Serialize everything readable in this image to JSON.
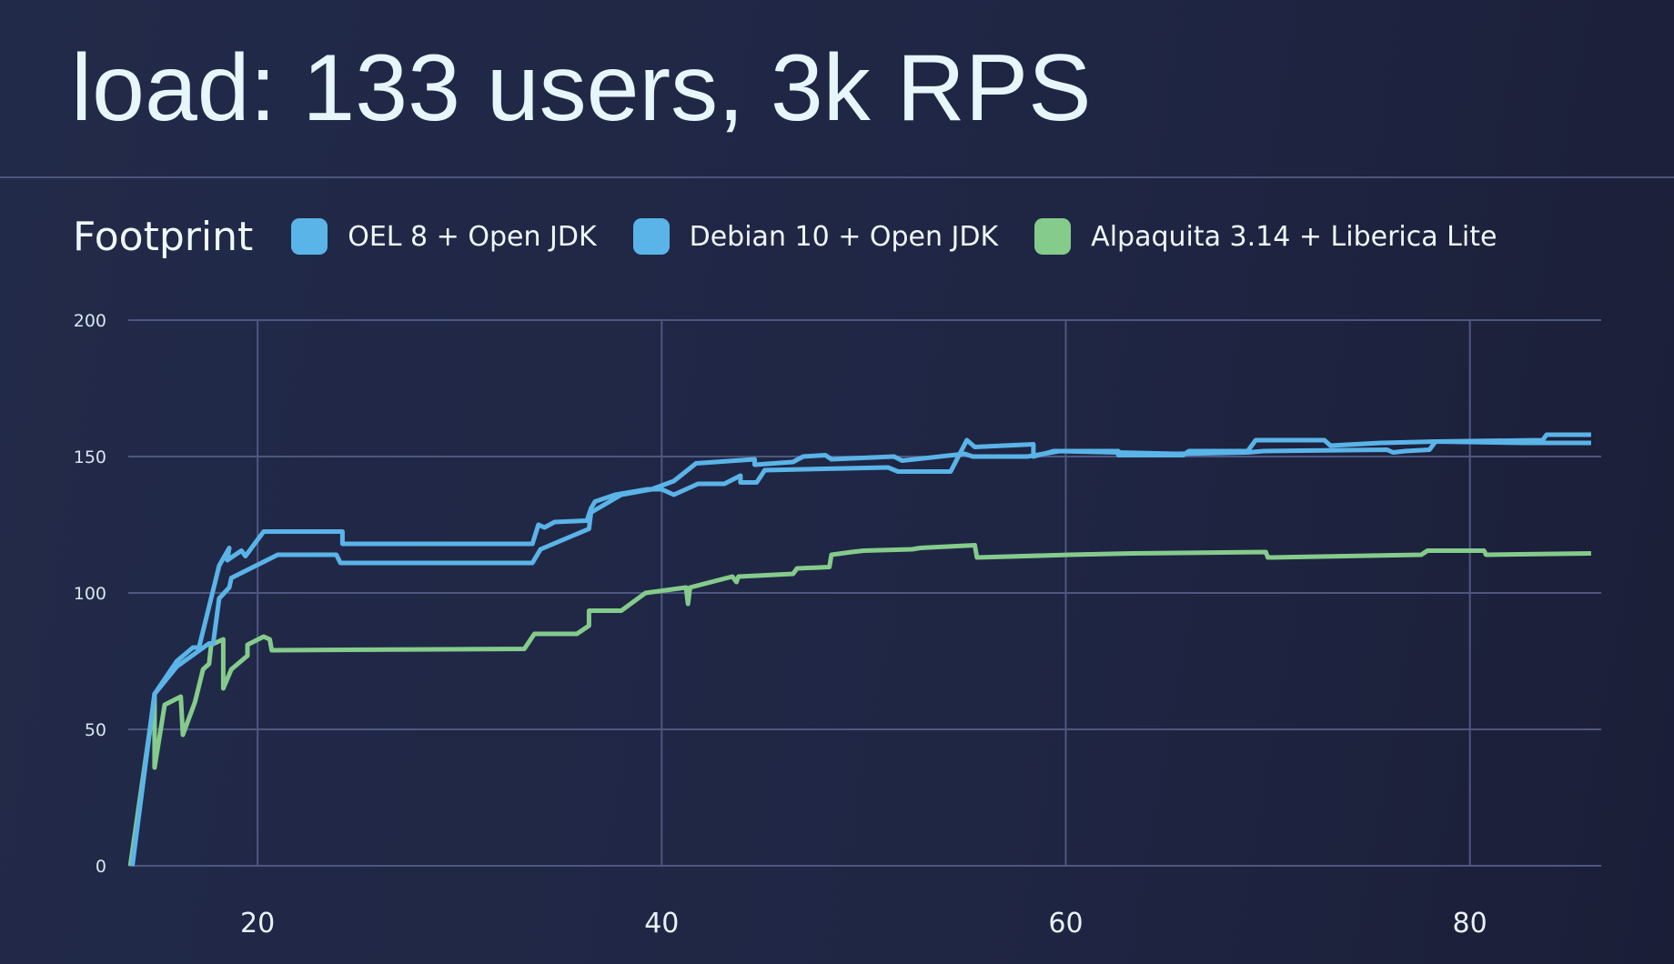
{
  "title": "load: 133 users, 3k RPS",
  "chart_data": {
    "type": "line",
    "title": "Footprint",
    "xlabel": "",
    "ylabel": "",
    "xlim": [
      13.6,
      86.5
    ],
    "ylim": [
      0,
      200
    ],
    "xticks": [
      "20",
      "40",
      "60",
      "80"
    ],
    "xtick_values": [
      20,
      40,
      60,
      80
    ],
    "yticks": [
      "0",
      "50",
      "100",
      "150",
      "200"
    ],
    "ytick_values": [
      0,
      50,
      100,
      150,
      200
    ],
    "grid": true,
    "legend_position": "top-left",
    "series": [
      {
        "name": "OEL 8 + Open JDK",
        "color": "#5ab4e8",
        "points": [
          [
            13.8,
            0
          ],
          [
            14.9,
            63
          ],
          [
            16,
            75
          ],
          [
            16.8,
            80
          ],
          [
            17.1,
            80
          ],
          [
            18.1,
            110
          ],
          [
            18.6,
            116.5
          ],
          [
            18.5,
            112
          ],
          [
            19.2,
            115.5
          ],
          [
            19.4,
            113.5
          ],
          [
            20.3,
            122.5
          ],
          [
            24.2,
            122.5
          ],
          [
            24.2,
            118
          ],
          [
            33.6,
            118
          ],
          [
            33.9,
            125
          ],
          [
            34.2,
            124
          ],
          [
            34.7,
            126
          ],
          [
            36.3,
            126.5
          ],
          [
            36.5,
            131
          ],
          [
            36.7,
            133.5
          ],
          [
            37.7,
            136
          ],
          [
            39.3,
            138
          ],
          [
            40,
            138
          ],
          [
            40.6,
            136
          ],
          [
            41.8,
            140
          ],
          [
            43.1,
            140
          ],
          [
            43.9,
            143
          ],
          [
            43.9,
            140.5
          ],
          [
            44.7,
            140.5
          ],
          [
            45.1,
            145
          ],
          [
            51.2,
            146
          ],
          [
            51.7,
            144.5
          ],
          [
            54.3,
            144.5
          ],
          [
            55.1,
            156
          ],
          [
            55.5,
            153.5
          ],
          [
            58.4,
            154.5
          ],
          [
            58.4,
            150
          ],
          [
            59.4,
            152
          ],
          [
            62.6,
            152
          ],
          [
            62.6,
            150.5
          ],
          [
            65.8,
            150.5
          ],
          [
            66.1,
            152
          ],
          [
            69,
            152
          ],
          [
            69.4,
            156
          ],
          [
            72.8,
            156
          ],
          [
            73.1,
            154
          ],
          [
            75.6,
            155
          ],
          [
            78.3,
            155.5
          ],
          [
            83.6,
            156
          ],
          [
            83.8,
            158
          ],
          [
            86,
            158
          ]
        ]
      },
      {
        "name": "Debian 10 + Open JDK",
        "color": "#5ab4e8",
        "points": [
          [
            13.8,
            0
          ],
          [
            14.9,
            63
          ],
          [
            16,
            73
          ],
          [
            17.6,
            81.5
          ],
          [
            17.8,
            81.5
          ],
          [
            18.1,
            98
          ],
          [
            18.6,
            102
          ],
          [
            18.7,
            105.5
          ],
          [
            21,
            114
          ],
          [
            23.9,
            114
          ],
          [
            24.1,
            111
          ],
          [
            33.6,
            111
          ],
          [
            34,
            116
          ],
          [
            36.4,
            123.5
          ],
          [
            36.5,
            129.5
          ],
          [
            38,
            136
          ],
          [
            39.5,
            138
          ],
          [
            40.6,
            141
          ],
          [
            41.7,
            147.5
          ],
          [
            44.6,
            149
          ],
          [
            44.6,
            147
          ],
          [
            46.5,
            148
          ],
          [
            47,
            150
          ],
          [
            48.1,
            150.5
          ],
          [
            48.4,
            149
          ],
          [
            51.5,
            150
          ],
          [
            51.9,
            148.5
          ],
          [
            55,
            151
          ],
          [
            55.4,
            150
          ],
          [
            58.1,
            150
          ],
          [
            59.7,
            152
          ],
          [
            65.5,
            151
          ],
          [
            69,
            151.5
          ],
          [
            69.8,
            152
          ],
          [
            75.9,
            152.5
          ],
          [
            76.2,
            151.5
          ],
          [
            76.8,
            152
          ],
          [
            78,
            152.5
          ],
          [
            78.3,
            155.5
          ],
          [
            82.7,
            155
          ],
          [
            86,
            155
          ]
        ]
      },
      {
        "name": "Alpaquita 3.14 + Liberica Lite",
        "color": "#85cb8c",
        "points": [
          [
            13.7,
            0
          ],
          [
            14.9,
            62
          ],
          [
            14.9,
            36
          ],
          [
            15.4,
            59
          ],
          [
            16.2,
            62
          ],
          [
            16.3,
            48
          ],
          [
            16.9,
            60
          ],
          [
            17.3,
            72
          ],
          [
            17.6,
            74
          ],
          [
            17.7,
            81
          ],
          [
            18.3,
            83
          ],
          [
            18.3,
            65
          ],
          [
            18.7,
            72
          ],
          [
            19.5,
            77
          ],
          [
            19.5,
            81
          ],
          [
            20.3,
            84
          ],
          [
            20.6,
            83
          ],
          [
            20.7,
            79
          ],
          [
            33.2,
            79.5
          ],
          [
            33.7,
            85
          ],
          [
            35.8,
            85
          ],
          [
            36.4,
            88
          ],
          [
            36.4,
            93.5
          ],
          [
            38,
            93.5
          ],
          [
            39.2,
            100
          ],
          [
            41.2,
            102
          ],
          [
            41.3,
            96
          ],
          [
            41.4,
            102
          ],
          [
            43.5,
            106
          ],
          [
            43.7,
            104
          ],
          [
            43.8,
            106
          ],
          [
            46.5,
            107
          ],
          [
            46.7,
            109
          ],
          [
            48.3,
            109.5
          ],
          [
            48.4,
            114
          ],
          [
            49.4,
            115
          ],
          [
            50,
            115.5
          ],
          [
            52.4,
            116
          ],
          [
            52.8,
            116.5
          ],
          [
            55.5,
            117.5
          ],
          [
            55.6,
            113
          ],
          [
            60.2,
            114
          ],
          [
            63.3,
            114.5
          ],
          [
            69.9,
            115
          ],
          [
            70,
            113
          ],
          [
            77.6,
            114
          ],
          [
            77.9,
            115.5
          ],
          [
            80.7,
            115.5
          ],
          [
            80.8,
            114
          ],
          [
            86,
            114.5
          ]
        ]
      }
    ]
  }
}
